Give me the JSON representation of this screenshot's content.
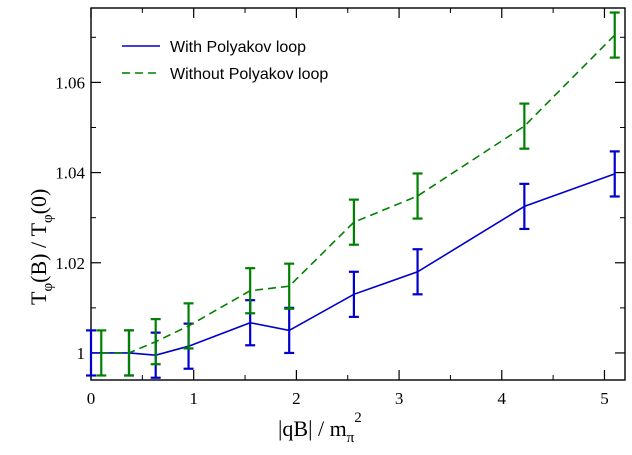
{
  "chart_data": {
    "type": "line",
    "xlabel": "|qB|  /  m",
    "xlabel_sub": "π",
    "xlabel_sup": "2",
    "ylabel": "T",
    "ylabel_sub": "φ",
    "ylabel_mid": "(B)  /  T",
    "ylabel_sub2": "φ",
    "ylabel_end": "(0)",
    "xlim": [
      0,
      5.2
    ],
    "ylim": [
      0.994,
      1.0765
    ],
    "xticks": [
      0,
      1,
      2,
      3,
      4,
      5
    ],
    "xtick_labels": [
      "0",
      "1",
      "2",
      "3",
      "4",
      "5"
    ],
    "yticks": [
      1.0,
      1.02,
      1.04,
      1.06
    ],
    "ytick_labels": [
      "1",
      "1.02",
      "1.04",
      "1.06"
    ],
    "legend_position": "top-left",
    "grid": false,
    "series": [
      {
        "name": "With Polyakov loop",
        "color": "#0000cc",
        "style": "solid",
        "points": [
          {
            "x": 0.0,
            "y": 1.0,
            "err": 0.005
          },
          {
            "x": 0.37,
            "y": 1.0,
            "err": 0.005
          },
          {
            "x": 0.63,
            "y": 0.9995,
            "err": 0.005
          },
          {
            "x": 0.95,
            "y": 1.0015,
            "err": 0.005
          },
          {
            "x": 1.55,
            "y": 1.0067,
            "err": 0.005
          },
          {
            "x": 1.93,
            "y": 1.005,
            "err": 0.005
          },
          {
            "x": 2.56,
            "y": 1.013,
            "err": 0.005
          },
          {
            "x": 3.18,
            "y": 1.018,
            "err": 0.005
          },
          {
            "x": 4.22,
            "y": 1.0325,
            "err": 0.005
          },
          {
            "x": 5.1,
            "y": 1.0397,
            "err": 0.005
          }
        ]
      },
      {
        "name": "Without Polyakov loop",
        "color": "#008000",
        "style": "dashed",
        "points": [
          {
            "x": 0.1,
            "y": 1.0,
            "err": 0.005
          },
          {
            "x": 0.37,
            "y": 1.0,
            "err": 0.005
          },
          {
            "x": 0.63,
            "y": 1.0025,
            "err": 0.005
          },
          {
            "x": 0.95,
            "y": 1.006,
            "err": 0.005
          },
          {
            "x": 1.55,
            "y": 1.0138,
            "err": 0.005
          },
          {
            "x": 1.93,
            "y": 1.0148,
            "err": 0.005
          },
          {
            "x": 2.56,
            "y": 1.029,
            "err": 0.005
          },
          {
            "x": 3.18,
            "y": 1.0348,
            "err": 0.005
          },
          {
            "x": 4.22,
            "y": 1.0503,
            "err": 0.005
          },
          {
            "x": 5.1,
            "y": 1.0705,
            "err": 0.005
          }
        ]
      }
    ]
  }
}
